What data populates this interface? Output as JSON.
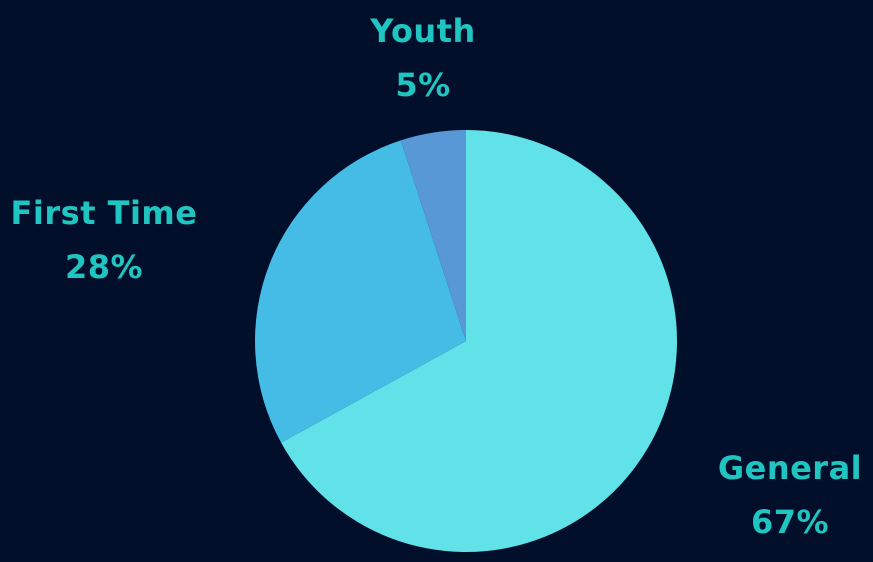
{
  "chart_data": {
    "type": "pie",
    "slices": [
      {
        "label": "General",
        "value": 67,
        "value_label": "67%",
        "color": "#61e1e8"
      },
      {
        "label": "First Time",
        "value": 28,
        "value_label": "28%",
        "color": "#45bce5"
      },
      {
        "label": "Youth",
        "value": 5,
        "value_label": "5%",
        "color": "#5898d6"
      }
    ],
    "label_color": "#20c4c0",
    "background": "#010f2a"
  }
}
